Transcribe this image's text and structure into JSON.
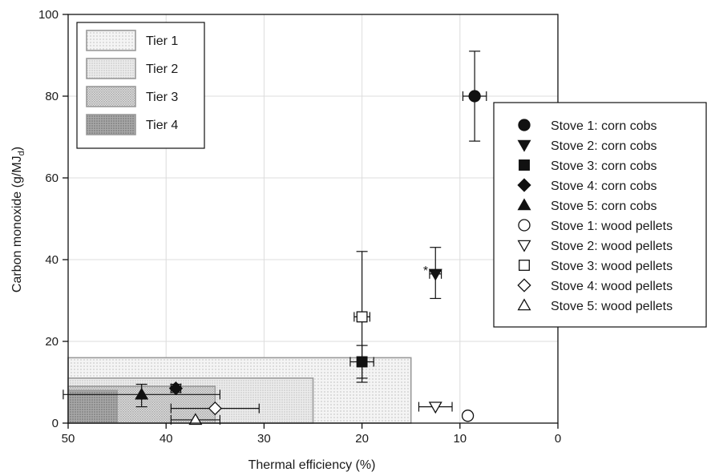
{
  "chart_data": {
    "type": "scatter",
    "xlabel": "Thermal efficiency (%)",
    "ylabel_main": "Carbon monoxide (g/MJ",
    "ylabel_sub": "d",
    "ylabel_close": ")",
    "xlim": [
      50,
      0
    ],
    "x_reversed": true,
    "ylim": [
      0,
      100
    ],
    "xticks": [
      50,
      40,
      30,
      20,
      10,
      0
    ],
    "yticks": [
      0,
      20,
      40,
      60,
      80,
      100
    ],
    "grid": true,
    "tiers": [
      {
        "name": "Tier 1",
        "x_min": 15,
        "x_max": 50,
        "y_max": 16,
        "color": "#f2f2f2",
        "dot": "#9a9a9a"
      },
      {
        "name": "Tier 2",
        "x_min": 25,
        "x_max": 50,
        "y_max": 11,
        "color": "#e9e9e9",
        "dot": "#8a8a8a"
      },
      {
        "name": "Tier 3",
        "x_min": 35,
        "x_max": 50,
        "y_max": 9,
        "color": "#d6d6d6",
        "dot": "#8a8a8a"
      },
      {
        "name": "Tier 4",
        "x_min": 45,
        "x_max": 50,
        "y_max": 8,
        "color": "#a9a9a9",
        "dot": "#6e6e6e"
      }
    ],
    "series": [
      {
        "name": "Stove 1: corn cobs",
        "marker": "circle",
        "filled": true,
        "x": 8.5,
        "y": 80,
        "xerr": 1.2,
        "y_lo": 69,
        "y_hi": 91
      },
      {
        "name": "Stove 2: corn cobs",
        "marker": "triangle-down",
        "filled": true,
        "x": 12.5,
        "y": 36.5,
        "xerr": 0.6,
        "y_lo": 30.5,
        "y_hi": 43
      },
      {
        "name": "Stove 3: corn cobs",
        "marker": "square",
        "filled": true,
        "x": 20,
        "y": 15,
        "xerr": 1.2,
        "y_lo": 11,
        "y_hi": 19
      },
      {
        "name": "Stove 4: corn cobs",
        "marker": "diamond",
        "filled": true,
        "x": 39,
        "y": 8.5,
        "xerr": 0.5,
        "y_lo": 7.5,
        "y_hi": 9.5
      },
      {
        "name": "Stove 5: corn cobs",
        "marker": "triangle-up",
        "filled": true,
        "x": 42.5,
        "y": 7,
        "xerr": 8,
        "y_lo": 4,
        "y_hi": 9.5
      },
      {
        "name": "Stove 1: wood pellets",
        "marker": "circle",
        "filled": false,
        "x": 9.2,
        "y": 1.8
      },
      {
        "name": "Stove 2: wood pellets",
        "marker": "triangle-down",
        "filled": false,
        "x": 12.5,
        "y": 4,
        "xerr": 1.7
      },
      {
        "name": "Stove 3: wood pellets",
        "marker": "square",
        "filled": false,
        "x": 20,
        "y": 26,
        "xerr": 0.8,
        "y_lo": 10,
        "y_hi": 42
      },
      {
        "name": "Stove 4: wood pellets",
        "marker": "diamond",
        "filled": false,
        "x": 35,
        "y": 3.6,
        "xerr": 4.5
      },
      {
        "name": "Stove 5: wood pellets",
        "marker": "triangle-up",
        "filled": false,
        "x": 37,
        "y": 0.8,
        "xerr": 2.5
      }
    ],
    "annotations": [
      {
        "text": "*",
        "x": 13.5,
        "y": 37.5
      }
    ]
  }
}
